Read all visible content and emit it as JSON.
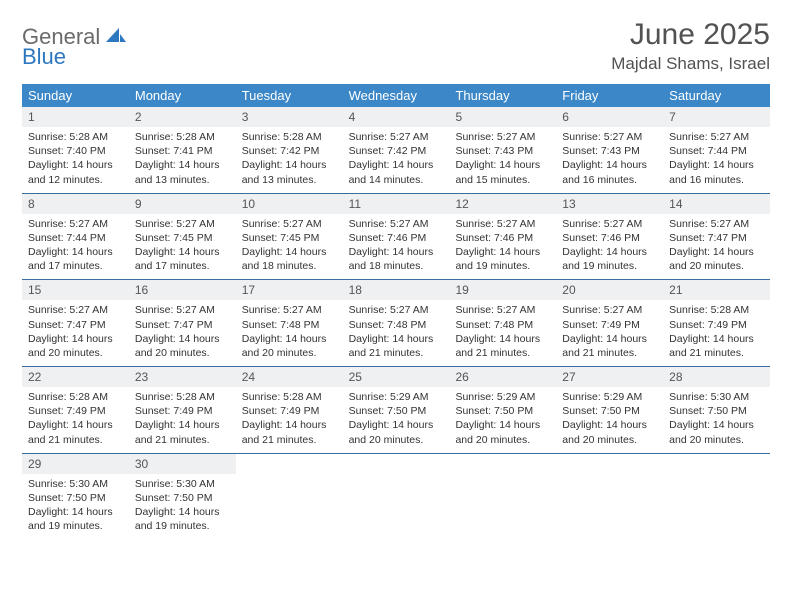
{
  "logo": {
    "text1": "General",
    "text2": "Blue"
  },
  "title": "June 2025",
  "location": "Majdal Shams, Israel",
  "colors": {
    "header_bg": "#3b87c8",
    "header_text": "#ffffff",
    "daynum_bg": "#eef0f2",
    "row_border": "#3b6ea0",
    "logo_gray": "#6b6b6b",
    "logo_blue": "#2d78bf"
  },
  "daynames": [
    "Sunday",
    "Monday",
    "Tuesday",
    "Wednesday",
    "Thursday",
    "Friday",
    "Saturday"
  ],
  "weeks": [
    [
      {
        "n": "1",
        "sr": "5:28 AM",
        "ss": "7:40 PM",
        "dl": "14 hours and 12 minutes."
      },
      {
        "n": "2",
        "sr": "5:28 AM",
        "ss": "7:41 PM",
        "dl": "14 hours and 13 minutes."
      },
      {
        "n": "3",
        "sr": "5:28 AM",
        "ss": "7:42 PM",
        "dl": "14 hours and 13 minutes."
      },
      {
        "n": "4",
        "sr": "5:27 AM",
        "ss": "7:42 PM",
        "dl": "14 hours and 14 minutes."
      },
      {
        "n": "5",
        "sr": "5:27 AM",
        "ss": "7:43 PM",
        "dl": "14 hours and 15 minutes."
      },
      {
        "n": "6",
        "sr": "5:27 AM",
        "ss": "7:43 PM",
        "dl": "14 hours and 16 minutes."
      },
      {
        "n": "7",
        "sr": "5:27 AM",
        "ss": "7:44 PM",
        "dl": "14 hours and 16 minutes."
      }
    ],
    [
      {
        "n": "8",
        "sr": "5:27 AM",
        "ss": "7:44 PM",
        "dl": "14 hours and 17 minutes."
      },
      {
        "n": "9",
        "sr": "5:27 AM",
        "ss": "7:45 PM",
        "dl": "14 hours and 17 minutes."
      },
      {
        "n": "10",
        "sr": "5:27 AM",
        "ss": "7:45 PM",
        "dl": "14 hours and 18 minutes."
      },
      {
        "n": "11",
        "sr": "5:27 AM",
        "ss": "7:46 PM",
        "dl": "14 hours and 18 minutes."
      },
      {
        "n": "12",
        "sr": "5:27 AM",
        "ss": "7:46 PM",
        "dl": "14 hours and 19 minutes."
      },
      {
        "n": "13",
        "sr": "5:27 AM",
        "ss": "7:46 PM",
        "dl": "14 hours and 19 minutes."
      },
      {
        "n": "14",
        "sr": "5:27 AM",
        "ss": "7:47 PM",
        "dl": "14 hours and 20 minutes."
      }
    ],
    [
      {
        "n": "15",
        "sr": "5:27 AM",
        "ss": "7:47 PM",
        "dl": "14 hours and 20 minutes."
      },
      {
        "n": "16",
        "sr": "5:27 AM",
        "ss": "7:47 PM",
        "dl": "14 hours and 20 minutes."
      },
      {
        "n": "17",
        "sr": "5:27 AM",
        "ss": "7:48 PM",
        "dl": "14 hours and 20 minutes."
      },
      {
        "n": "18",
        "sr": "5:27 AM",
        "ss": "7:48 PM",
        "dl": "14 hours and 21 minutes."
      },
      {
        "n": "19",
        "sr": "5:27 AM",
        "ss": "7:48 PM",
        "dl": "14 hours and 21 minutes."
      },
      {
        "n": "20",
        "sr": "5:27 AM",
        "ss": "7:49 PM",
        "dl": "14 hours and 21 minutes."
      },
      {
        "n": "21",
        "sr": "5:28 AM",
        "ss": "7:49 PM",
        "dl": "14 hours and 21 minutes."
      }
    ],
    [
      {
        "n": "22",
        "sr": "5:28 AM",
        "ss": "7:49 PM",
        "dl": "14 hours and 21 minutes."
      },
      {
        "n": "23",
        "sr": "5:28 AM",
        "ss": "7:49 PM",
        "dl": "14 hours and 21 minutes."
      },
      {
        "n": "24",
        "sr": "5:28 AM",
        "ss": "7:49 PM",
        "dl": "14 hours and 21 minutes."
      },
      {
        "n": "25",
        "sr": "5:29 AM",
        "ss": "7:50 PM",
        "dl": "14 hours and 20 minutes."
      },
      {
        "n": "26",
        "sr": "5:29 AM",
        "ss": "7:50 PM",
        "dl": "14 hours and 20 minutes."
      },
      {
        "n": "27",
        "sr": "5:29 AM",
        "ss": "7:50 PM",
        "dl": "14 hours and 20 minutes."
      },
      {
        "n": "28",
        "sr": "5:30 AM",
        "ss": "7:50 PM",
        "dl": "14 hours and 20 minutes."
      }
    ],
    [
      {
        "n": "29",
        "sr": "5:30 AM",
        "ss": "7:50 PM",
        "dl": "14 hours and 19 minutes."
      },
      {
        "n": "30",
        "sr": "5:30 AM",
        "ss": "7:50 PM",
        "dl": "14 hours and 19 minutes."
      },
      null,
      null,
      null,
      null,
      null
    ]
  ],
  "labels": {
    "sunrise": "Sunrise: ",
    "sunset": "Sunset: ",
    "daylight": "Daylight: "
  }
}
